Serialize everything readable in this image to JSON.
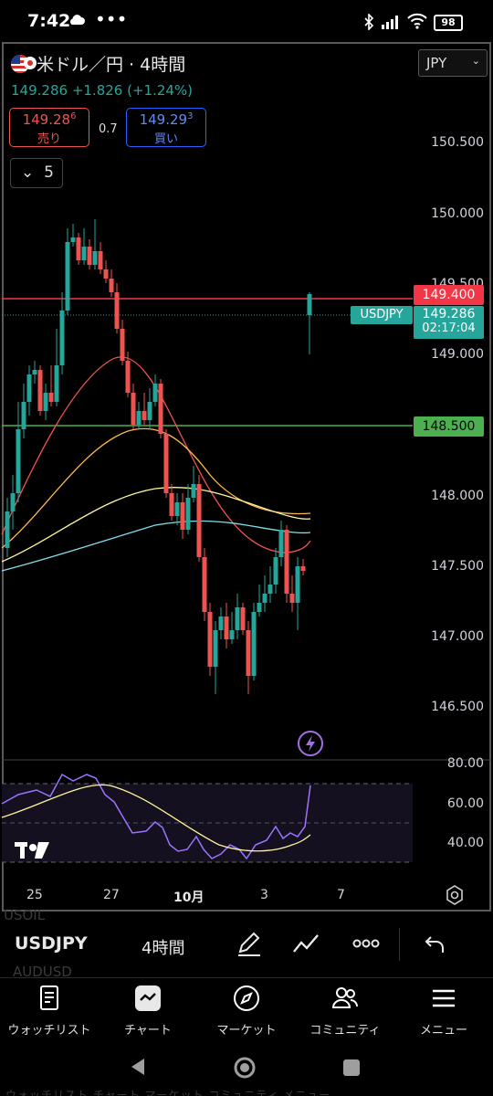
{
  "status_bar": {
    "time": "7:42",
    "dots": "•••",
    "battery": "98"
  },
  "chart": {
    "symbol_title": "米ドル／円 · 4時間",
    "currency": "JPY",
    "last_price": "149.286",
    "change": "+1.826",
    "change_pct": "(+1.24%)",
    "sell": {
      "price_main": "149.28",
      "price_sup": "6",
      "label": "売り"
    },
    "buy": {
      "price_main": "149.29",
      "price_sup": "3",
      "label": "買い"
    },
    "spread": "0.7",
    "indicator_count": "5",
    "price_axis": [
      "150.500",
      "150.000",
      "149.500",
      "149.000",
      "148.000",
      "147.500",
      "147.000",
      "146.500"
    ],
    "tags": {
      "alert_high": "149.400",
      "last": "149.286",
      "countdown": "02:17:04",
      "alert_low": "148.500",
      "symbol": "USDJPY"
    },
    "rsi_axis": [
      "80.00",
      "60.00",
      "40.00"
    ],
    "time_axis": [
      "25",
      "27",
      "10月",
      "3",
      "7"
    ],
    "colors": {
      "up": "#26a69a",
      "down": "#ef5350",
      "alert_high": "#f23645",
      "alert_low": "#4caf50",
      "rsi": "#9c73ff"
    }
  },
  "bottom": {
    "ghost_top": "USOIL",
    "ticker": "USDJPY",
    "interval": "4時間",
    "ghost_bottom": "AUDUSD",
    "tools": [
      "draw-icon",
      "indicators-icon",
      "more-icon",
      "undo-icon"
    ],
    "nav": [
      {
        "label": "ウォッチリスト",
        "icon": "watchlist-icon"
      },
      {
        "label": "チャート",
        "icon": "chart-icon"
      },
      {
        "label": "マーケット",
        "icon": "compass-icon"
      },
      {
        "label": "コミュニティ",
        "icon": "community-icon"
      },
      {
        "label": "メニュー",
        "icon": "menu-icon"
      }
    ],
    "ghost_footer": "ウォッチリスト   チャート   マーケット   コミュニティ   メニュー"
  }
}
